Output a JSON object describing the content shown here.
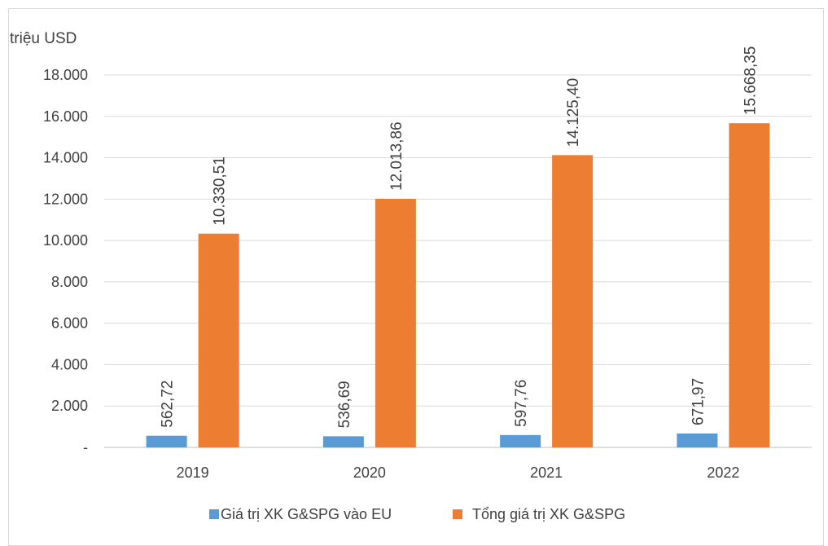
{
  "chart_data": {
    "type": "bar",
    "ylabel": "triệu USD",
    "ylim": [
      0,
      18000
    ],
    "yticks": [
      {
        "value": 0,
        "label": "-"
      },
      {
        "value": 2000,
        "label": "2.000"
      },
      {
        "value": 4000,
        "label": "4.000"
      },
      {
        "value": 6000,
        "label": "6.000"
      },
      {
        "value": 8000,
        "label": "8.000"
      },
      {
        "value": 10000,
        "label": "10.000"
      },
      {
        "value": 12000,
        "label": "12.000"
      },
      {
        "value": 14000,
        "label": "14.000"
      },
      {
        "value": 16000,
        "label": "16.000"
      },
      {
        "value": 18000,
        "label": "18.000"
      }
    ],
    "categories": [
      "2019",
      "2020",
      "2021",
      "2022"
    ],
    "series": [
      {
        "name": "Giá trị XK G&SPG vào EU",
        "color": "#5B9BD5",
        "values": [
          562.72,
          536.69,
          597.76,
          671.97
        ],
        "labels": [
          "562,72",
          "536,69",
          "597,76",
          "671,97"
        ]
      },
      {
        "name": "Tổng giá trị XK G&SPG",
        "color": "#ED7D31",
        "values": [
          10330.51,
          12013.86,
          14125.4,
          15668.35
        ],
        "labels": [
          "10.330,51",
          "12.013,86",
          "14.125,40",
          "15.668,35"
        ]
      }
    ],
    "grid": true,
    "legend": "bottom"
  }
}
